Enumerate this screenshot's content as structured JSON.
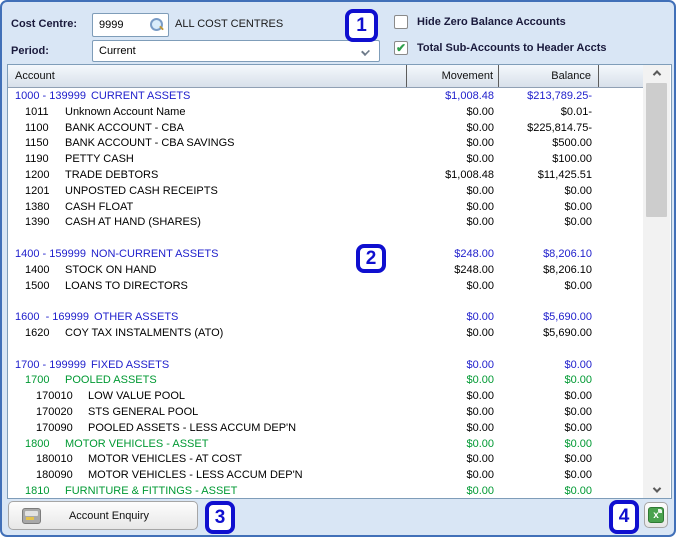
{
  "toolbar": {
    "cost_centre": {
      "label": "Cost Centre:",
      "value": "9999",
      "description": "ALL COST CENTRES"
    },
    "period": {
      "label": "Period:",
      "value": "Current"
    },
    "checkboxes": [
      {
        "label": "Hide Zero Balance Accounts",
        "checked": false
      },
      {
        "label": "Total Sub-Accounts to Header Accts",
        "checked": true
      }
    ]
  },
  "table": {
    "columns": [
      "Account",
      "Movement",
      "Balance"
    ],
    "rows": [
      {
        "num": "1000 - 139999",
        "name": "CURRENT ASSETS",
        "movement": "$1,008.48",
        "balance": "$213,789.25-",
        "level": 0,
        "color": "blue"
      },
      {
        "num": "1011",
        "name": "Unknown Account Name",
        "movement": "$0.00",
        "balance": "$0.01-",
        "level": 1
      },
      {
        "num": "1100",
        "name": "BANK ACCOUNT - CBA",
        "movement": "$0.00",
        "balance": "$225,814.75-",
        "level": 1
      },
      {
        "num": "1150",
        "name": "BANK ACCOUNT - CBA SAVINGS",
        "movement": "$0.00",
        "balance": "$500.00",
        "level": 1
      },
      {
        "num": "1190",
        "name": "PETTY CASH",
        "movement": "$0.00",
        "balance": "$100.00",
        "level": 1
      },
      {
        "num": "1200",
        "name": "TRADE DEBTORS",
        "movement": "$1,008.48",
        "balance": "$11,425.51",
        "level": 1
      },
      {
        "num": "1201",
        "name": "UNPOSTED CASH RECEIPTS",
        "movement": "$0.00",
        "balance": "$0.00",
        "level": 1
      },
      {
        "num": "1380",
        "name": "CASH FLOAT",
        "movement": "$0.00",
        "balance": "$0.00",
        "level": 1
      },
      {
        "num": "1390",
        "name": "CASH AT HAND (SHARES)",
        "movement": "$0.00",
        "balance": "$0.00",
        "level": 1
      },
      {
        "blank": true
      },
      {
        "num": "1400 - 159999",
        "name": "NON-CURRENT ASSETS",
        "movement": "$248.00",
        "balance": "$8,206.10",
        "level": 0,
        "color": "blue"
      },
      {
        "num": "1400",
        "name": "STOCK ON HAND",
        "movement": "$248.00",
        "balance": "$8,206.10",
        "level": 1
      },
      {
        "num": "1500",
        "name": "LOANS TO DIRECTORS",
        "movement": "$0.00",
        "balance": "$0.00",
        "level": 1
      },
      {
        "blank": true
      },
      {
        "num": "1600  - 169999",
        "name": "OTHER ASSETS",
        "movement": "$0.00",
        "balance": "$5,690.00",
        "level": 0,
        "color": "blue"
      },
      {
        "num": "1620",
        "name": "COY TAX INSTALMENTS (ATO)",
        "movement": "$0.00",
        "balance": "$5,690.00",
        "level": 1
      },
      {
        "blank": true
      },
      {
        "num": "1700 - 199999",
        "name": "FIXED ASSETS",
        "movement": "$0.00",
        "balance": "$0.00",
        "level": 0,
        "color": "blue"
      },
      {
        "num": "1700",
        "name": "POOLED ASSETS",
        "movement": "$0.00",
        "balance": "$0.00",
        "level": 1,
        "color": "green"
      },
      {
        "num": "170010",
        "name": "LOW VALUE POOL",
        "movement": "$0.00",
        "balance": "$0.00",
        "level": 2
      },
      {
        "num": "170020",
        "name": "STS GENERAL POOL",
        "movement": "$0.00",
        "balance": "$0.00",
        "level": 2
      },
      {
        "num": "170090",
        "name": "POOLED ASSETS - LESS ACCUM DEP'N",
        "movement": "$0.00",
        "balance": "$0.00",
        "level": 2
      },
      {
        "num": "1800",
        "name": "MOTOR VEHICLES - ASSET",
        "movement": "$0.00",
        "balance": "$0.00",
        "level": 1,
        "color": "green"
      },
      {
        "num": "180010",
        "name": "MOTOR VEHICLES - AT COST",
        "movement": "$0.00",
        "balance": "$0.00",
        "level": 2
      },
      {
        "num": "180090",
        "name": "MOTOR VEHICLES - LESS ACCUM DEP'N",
        "movement": "$0.00",
        "balance": "$0.00",
        "level": 2
      },
      {
        "num": "1810",
        "name": "FURNITURE & FITTINGS - ASSET",
        "movement": "$0.00",
        "balance": "$0.00",
        "level": 1,
        "color": "green"
      }
    ]
  },
  "footer": {
    "account_enquiry_label": "Account Enquiry"
  },
  "annotations": [
    "1",
    "2",
    "3",
    "4"
  ],
  "colors": {
    "window_border": "#4170b8",
    "window_background": "#d9e6f5",
    "section_header_blue": "#2121cc",
    "sub_header_green": "#009933",
    "checkmark_green": "#2ea04c",
    "callout_blue": "#0f0fcf"
  }
}
